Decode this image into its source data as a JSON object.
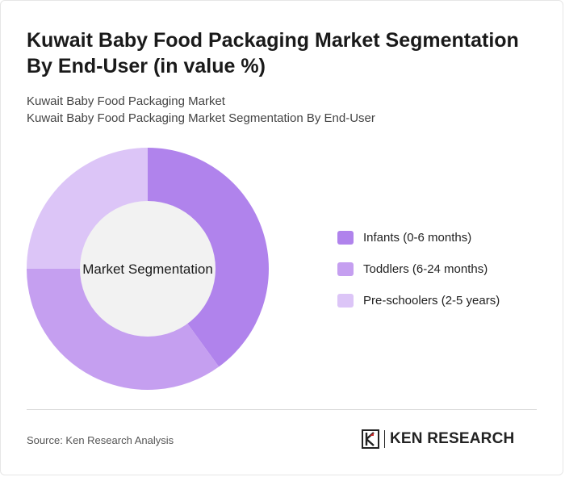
{
  "title": "Kuwait Baby Food Packaging Market Segmentation By End-User (in value %)",
  "subtitle": {
    "line1": "Kuwait Baby Food Packaging Market",
    "line2": "Kuwait Baby Food Packaging Market Segmentation By End-User"
  },
  "chart_data": {
    "type": "pie",
    "center_label": "Market Segmentation",
    "series": [
      {
        "name": "Infants (0-6 months)",
        "value": 40,
        "color": "#b083ec"
      },
      {
        "name": "Toddlers (6-24 months)",
        "value": 35,
        "color": "#c59ff0"
      },
      {
        "name": "Pre-schoolers (2-5 years)",
        "value": 25,
        "color": "#dcc5f7"
      }
    ],
    "legend_position": "right",
    "inner_color": "#f2f2f2"
  },
  "footer": {
    "source": "Source: Ken Research Analysis",
    "logo_text": "KEN RESEARCH",
    "logo_icon": "ken-research-logo-icon"
  }
}
